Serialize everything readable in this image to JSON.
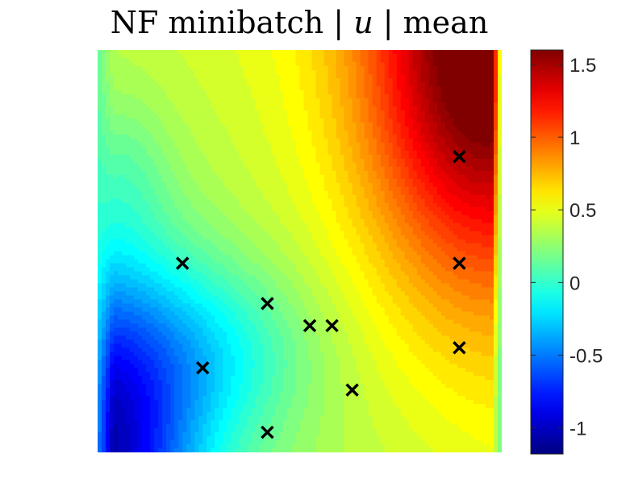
{
  "chart_data": {
    "type": "heatmap",
    "title_parts": [
      "NF minibatch |",
      "u",
      "| mean"
    ],
    "xlabel": "",
    "ylabel": "",
    "axes_ticks_visible": false,
    "grid": false,
    "colormap": "jet",
    "colorbar": {
      "location": "right",
      "ticks": [
        -1,
        -0.5,
        0,
        0.5,
        1,
        1.5
      ],
      "tick_labels": [
        "-1",
        "-0.5",
        "0",
        "0.5",
        "1",
        "1.5"
      ],
      "clim": [
        -1.18,
        1.6
      ]
    },
    "markers": {
      "symbol": "x",
      "color": "#000000",
      "points": [
        {
          "x": 0.21,
          "y": 0.47
        },
        {
          "x": 0.26,
          "y": 0.21
        },
        {
          "x": 0.42,
          "y": 0.37
        },
        {
          "x": 0.42,
          "y": 0.05
        },
        {
          "x": 0.525,
          "y": 0.315
        },
        {
          "x": 0.58,
          "y": 0.315
        },
        {
          "x": 0.63,
          "y": 0.155
        },
        {
          "x": 0.895,
          "y": 0.26
        },
        {
          "x": 0.895,
          "y": 0.47
        },
        {
          "x": 0.895,
          "y": 0.735
        }
      ]
    }
  }
}
